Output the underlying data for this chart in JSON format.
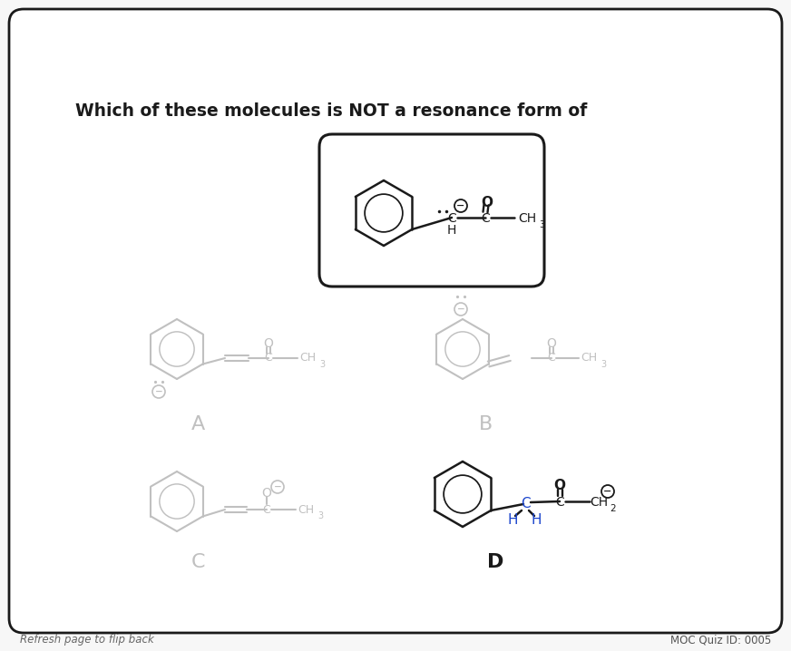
{
  "bg_color": "#f7f7f7",
  "border_color": "#2a2a2a",
  "title": "Which of these molecules is NOT a resonance form of",
  "title_fontsize": 13.5,
  "footer_left": "Refresh page to flip back",
  "footer_right": "MOC Quiz ID: 0005",
  "gray_color": "#c0c0c0",
  "black_color": "#1a1a1a",
  "blue_color": "#1a44cc",
  "label_A": "A",
  "label_B": "B",
  "label_C": "C",
  "label_D": "D"
}
